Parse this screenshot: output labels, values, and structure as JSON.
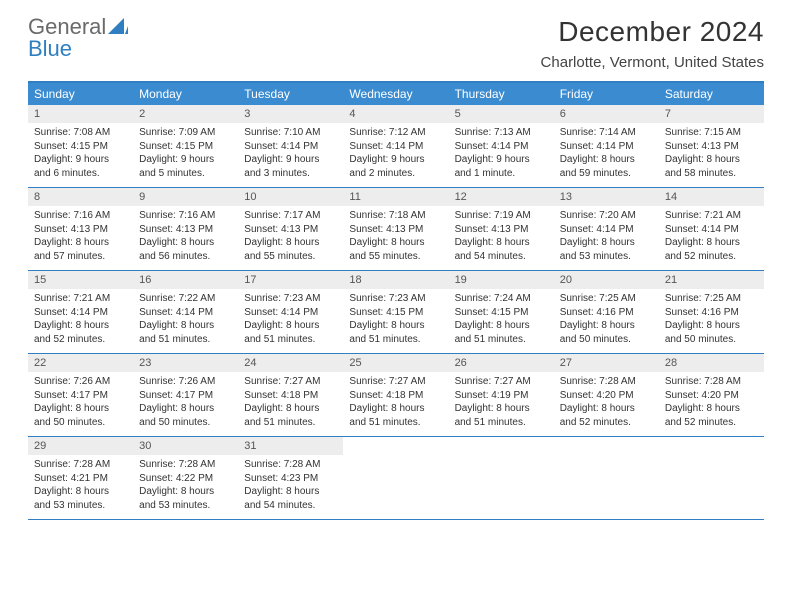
{
  "logo": {
    "textGray": "General",
    "textBlue": "Blue"
  },
  "title": "December 2024",
  "location": "Charlotte, Vermont, United States",
  "colors": {
    "headerBar": "#3b8bd0",
    "borderBlue": "#2f7fc2",
    "dayNumBg": "#ededed",
    "text": "#333333"
  },
  "weekdays": [
    "Sunday",
    "Monday",
    "Tuesday",
    "Wednesday",
    "Thursday",
    "Friday",
    "Saturday"
  ],
  "weeks": [
    [
      {
        "n": "1",
        "sr": "7:08 AM",
        "ss": "4:15 PM",
        "dl": "9 hours and 6 minutes."
      },
      {
        "n": "2",
        "sr": "7:09 AM",
        "ss": "4:15 PM",
        "dl": "9 hours and 5 minutes."
      },
      {
        "n": "3",
        "sr": "7:10 AM",
        "ss": "4:14 PM",
        "dl": "9 hours and 3 minutes."
      },
      {
        "n": "4",
        "sr": "7:12 AM",
        "ss": "4:14 PM",
        "dl": "9 hours and 2 minutes."
      },
      {
        "n": "5",
        "sr": "7:13 AM",
        "ss": "4:14 PM",
        "dl": "9 hours and 1 minute."
      },
      {
        "n": "6",
        "sr": "7:14 AM",
        "ss": "4:14 PM",
        "dl": "8 hours and 59 minutes."
      },
      {
        "n": "7",
        "sr": "7:15 AM",
        "ss": "4:13 PM",
        "dl": "8 hours and 58 minutes."
      }
    ],
    [
      {
        "n": "8",
        "sr": "7:16 AM",
        "ss": "4:13 PM",
        "dl": "8 hours and 57 minutes."
      },
      {
        "n": "9",
        "sr": "7:16 AM",
        "ss": "4:13 PM",
        "dl": "8 hours and 56 minutes."
      },
      {
        "n": "10",
        "sr": "7:17 AM",
        "ss": "4:13 PM",
        "dl": "8 hours and 55 minutes."
      },
      {
        "n": "11",
        "sr": "7:18 AM",
        "ss": "4:13 PM",
        "dl": "8 hours and 55 minutes."
      },
      {
        "n": "12",
        "sr": "7:19 AM",
        "ss": "4:13 PM",
        "dl": "8 hours and 54 minutes."
      },
      {
        "n": "13",
        "sr": "7:20 AM",
        "ss": "4:14 PM",
        "dl": "8 hours and 53 minutes."
      },
      {
        "n": "14",
        "sr": "7:21 AM",
        "ss": "4:14 PM",
        "dl": "8 hours and 52 minutes."
      }
    ],
    [
      {
        "n": "15",
        "sr": "7:21 AM",
        "ss": "4:14 PM",
        "dl": "8 hours and 52 minutes."
      },
      {
        "n": "16",
        "sr": "7:22 AM",
        "ss": "4:14 PM",
        "dl": "8 hours and 51 minutes."
      },
      {
        "n": "17",
        "sr": "7:23 AM",
        "ss": "4:14 PM",
        "dl": "8 hours and 51 minutes."
      },
      {
        "n": "18",
        "sr": "7:23 AM",
        "ss": "4:15 PM",
        "dl": "8 hours and 51 minutes."
      },
      {
        "n": "19",
        "sr": "7:24 AM",
        "ss": "4:15 PM",
        "dl": "8 hours and 51 minutes."
      },
      {
        "n": "20",
        "sr": "7:25 AM",
        "ss": "4:16 PM",
        "dl": "8 hours and 50 minutes."
      },
      {
        "n": "21",
        "sr": "7:25 AM",
        "ss": "4:16 PM",
        "dl": "8 hours and 50 minutes."
      }
    ],
    [
      {
        "n": "22",
        "sr": "7:26 AM",
        "ss": "4:17 PM",
        "dl": "8 hours and 50 minutes."
      },
      {
        "n": "23",
        "sr": "7:26 AM",
        "ss": "4:17 PM",
        "dl": "8 hours and 50 minutes."
      },
      {
        "n": "24",
        "sr": "7:27 AM",
        "ss": "4:18 PM",
        "dl": "8 hours and 51 minutes."
      },
      {
        "n": "25",
        "sr": "7:27 AM",
        "ss": "4:18 PM",
        "dl": "8 hours and 51 minutes."
      },
      {
        "n": "26",
        "sr": "7:27 AM",
        "ss": "4:19 PM",
        "dl": "8 hours and 51 minutes."
      },
      {
        "n": "27",
        "sr": "7:28 AM",
        "ss": "4:20 PM",
        "dl": "8 hours and 52 minutes."
      },
      {
        "n": "28",
        "sr": "7:28 AM",
        "ss": "4:20 PM",
        "dl": "8 hours and 52 minutes."
      }
    ],
    [
      {
        "n": "29",
        "sr": "7:28 AM",
        "ss": "4:21 PM",
        "dl": "8 hours and 53 minutes."
      },
      {
        "n": "30",
        "sr": "7:28 AM",
        "ss": "4:22 PM",
        "dl": "8 hours and 53 minutes."
      },
      {
        "n": "31",
        "sr": "7:28 AM",
        "ss": "4:23 PM",
        "dl": "8 hours and 54 minutes."
      },
      null,
      null,
      null,
      null
    ]
  ],
  "labels": {
    "sunrise": "Sunrise:",
    "sunset": "Sunset:",
    "daylight": "Daylight:"
  }
}
